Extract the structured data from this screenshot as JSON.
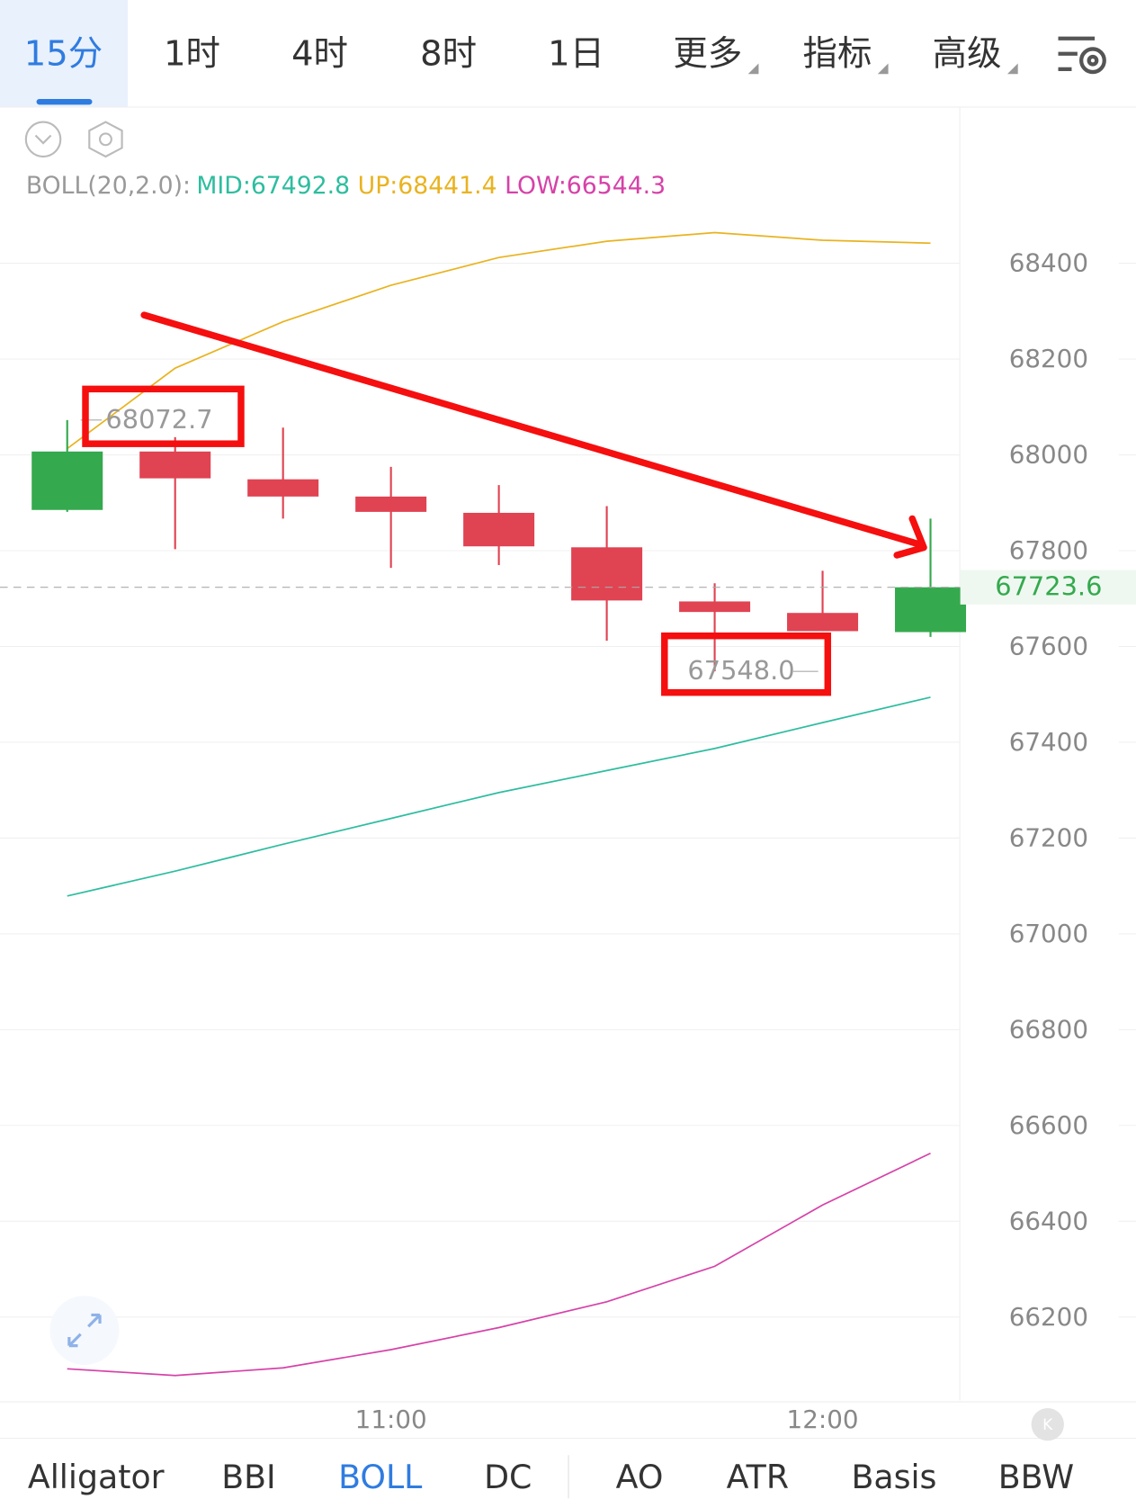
{
  "tabs": [
    "15分",
    "1时",
    "4时",
    "8时",
    "1日",
    "更多",
    "指标",
    "高级"
  ],
  "indicator_tabs": [
    "Alligator",
    "BBI",
    "BOLL",
    "DC",
    "AO",
    "ATR",
    "Basis",
    "BBW"
  ],
  "chart_data": {
    "type": "candlestick",
    "indicator": "BOLL(20,2.0):",
    "categories": [
      null,
      null,
      null,
      "11:00",
      null,
      null,
      null,
      "12:00",
      null
    ],
    "open": [
      67885,
      68007,
      67949,
      67913,
      67879,
      67807,
      67694,
      67670,
      67630
    ],
    "high": [
      68072.7,
      68037,
      68057,
      67975,
      67937,
      67893,
      67732,
      67758,
      67867
    ],
    "low": [
      67881,
      67803,
      67867,
      67764,
      67770,
      67612,
      67548,
      67632,
      67620
    ],
    "close": [
      68007,
      67951,
      67913,
      67881,
      67809,
      67696,
      67672,
      67632,
      67723.6
    ],
    "up_color": "#34a94d",
    "down_color": "#e04352",
    "series": [
      {
        "name": "MID:67492.8",
        "color": "#2ebd9f",
        "values": [
          67079,
          67131,
          67187,
          67241,
          67295,
          67341,
          67387,
          67441,
          67494
        ]
      },
      {
        "name": "UP:68441.4",
        "color": "#e9b320",
        "values": [
          68013,
          68181,
          68278,
          68354,
          68412,
          68446,
          68464,
          68448,
          68442
        ]
      },
      {
        "name": "LOW:66544.3",
        "color": "#d642a8",
        "values": [
          66092,
          66078,
          66094,
          66132,
          66178,
          66232,
          66306,
          66434,
          66542
        ]
      }
    ],
    "last_price": 67723.6,
    "high_marker": 68072.7,
    "low_marker": {
      "value": 67548,
      "label": "67548.0"
    },
    "ylim": [
      66026,
      68719
    ],
    "yticks": [
      66200,
      66400,
      66600,
      66800,
      67000,
      67200,
      67400,
      67600,
      67800,
      68000,
      68200,
      68400
    ],
    "grid": true
  }
}
